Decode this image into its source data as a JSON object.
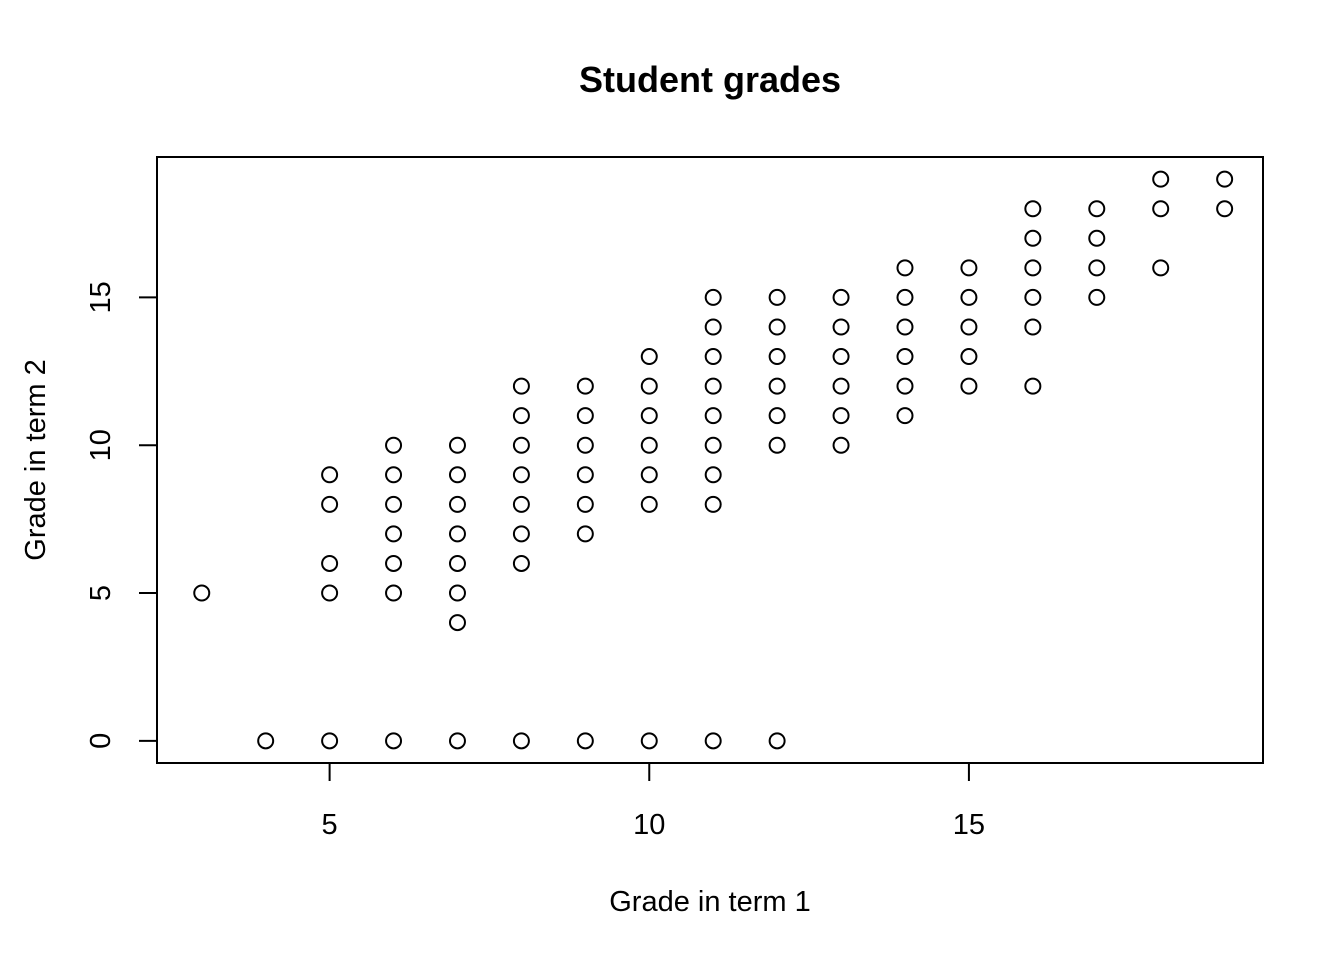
{
  "chart_data": {
    "type": "scatter",
    "title": "Student grades",
    "xlabel": "Grade in term 1",
    "ylabel": "Grade in term 2",
    "xlim": [
      2.3,
      19.6
    ],
    "ylim": [
      -0.75,
      19.75
    ],
    "x_ticks": [
      5,
      10,
      15
    ],
    "y_ticks": [
      0,
      5,
      10,
      15
    ],
    "grid": false,
    "legend": "none",
    "marker": "open-circle",
    "marker_color": "#000000",
    "points": [
      {
        "x": 3,
        "y": 5
      },
      {
        "x": 4,
        "y": 0
      },
      {
        "x": 5,
        "y": 0
      },
      {
        "x": 5,
        "y": 5
      },
      {
        "x": 5,
        "y": 6
      },
      {
        "x": 5,
        "y": 8
      },
      {
        "x": 5,
        "y": 9
      },
      {
        "x": 6,
        "y": 0
      },
      {
        "x": 6,
        "y": 5
      },
      {
        "x": 6,
        "y": 6
      },
      {
        "x": 6,
        "y": 7
      },
      {
        "x": 6,
        "y": 8
      },
      {
        "x": 6,
        "y": 9
      },
      {
        "x": 6,
        "y": 10
      },
      {
        "x": 7,
        "y": 0
      },
      {
        "x": 7,
        "y": 4
      },
      {
        "x": 7,
        "y": 5
      },
      {
        "x": 7,
        "y": 6
      },
      {
        "x": 7,
        "y": 7
      },
      {
        "x": 7,
        "y": 8
      },
      {
        "x": 7,
        "y": 9
      },
      {
        "x": 7,
        "y": 10
      },
      {
        "x": 8,
        "y": 0
      },
      {
        "x": 8,
        "y": 6
      },
      {
        "x": 8,
        "y": 7
      },
      {
        "x": 8,
        "y": 8
      },
      {
        "x": 8,
        "y": 9
      },
      {
        "x": 8,
        "y": 10
      },
      {
        "x": 8,
        "y": 11
      },
      {
        "x": 8,
        "y": 12
      },
      {
        "x": 9,
        "y": 0
      },
      {
        "x": 9,
        "y": 7
      },
      {
        "x": 9,
        "y": 8
      },
      {
        "x": 9,
        "y": 9
      },
      {
        "x": 9,
        "y": 10
      },
      {
        "x": 9,
        "y": 11
      },
      {
        "x": 9,
        "y": 12
      },
      {
        "x": 10,
        "y": 0
      },
      {
        "x": 10,
        "y": 8
      },
      {
        "x": 10,
        "y": 9
      },
      {
        "x": 10,
        "y": 10
      },
      {
        "x": 10,
        "y": 11
      },
      {
        "x": 10,
        "y": 12
      },
      {
        "x": 10,
        "y": 13
      },
      {
        "x": 11,
        "y": 0
      },
      {
        "x": 11,
        "y": 8
      },
      {
        "x": 11,
        "y": 9
      },
      {
        "x": 11,
        "y": 10
      },
      {
        "x": 11,
        "y": 11
      },
      {
        "x": 11,
        "y": 12
      },
      {
        "x": 11,
        "y": 13
      },
      {
        "x": 11,
        "y": 14
      },
      {
        "x": 11,
        "y": 15
      },
      {
        "x": 12,
        "y": 0
      },
      {
        "x": 12,
        "y": 10
      },
      {
        "x": 12,
        "y": 11
      },
      {
        "x": 12,
        "y": 12
      },
      {
        "x": 12,
        "y": 13
      },
      {
        "x": 12,
        "y": 14
      },
      {
        "x": 12,
        "y": 15
      },
      {
        "x": 13,
        "y": 10
      },
      {
        "x": 13,
        "y": 11
      },
      {
        "x": 13,
        "y": 12
      },
      {
        "x": 13,
        "y": 13
      },
      {
        "x": 13,
        "y": 14
      },
      {
        "x": 13,
        "y": 15
      },
      {
        "x": 14,
        "y": 11
      },
      {
        "x": 14,
        "y": 12
      },
      {
        "x": 14,
        "y": 13
      },
      {
        "x": 14,
        "y": 14
      },
      {
        "x": 14,
        "y": 15
      },
      {
        "x": 14,
        "y": 16
      },
      {
        "x": 15,
        "y": 12
      },
      {
        "x": 15,
        "y": 13
      },
      {
        "x": 15,
        "y": 14
      },
      {
        "x": 15,
        "y": 15
      },
      {
        "x": 15,
        "y": 16
      },
      {
        "x": 16,
        "y": 12
      },
      {
        "x": 16,
        "y": 14
      },
      {
        "x": 16,
        "y": 15
      },
      {
        "x": 16,
        "y": 16
      },
      {
        "x": 16,
        "y": 17
      },
      {
        "x": 16,
        "y": 18
      },
      {
        "x": 17,
        "y": 15
      },
      {
        "x": 17,
        "y": 16
      },
      {
        "x": 17,
        "y": 17
      },
      {
        "x": 17,
        "y": 18
      },
      {
        "x": 18,
        "y": 16
      },
      {
        "x": 18,
        "y": 18
      },
      {
        "x": 18,
        "y": 19
      },
      {
        "x": 19,
        "y": 18
      },
      {
        "x": 19,
        "y": 19
      }
    ]
  }
}
